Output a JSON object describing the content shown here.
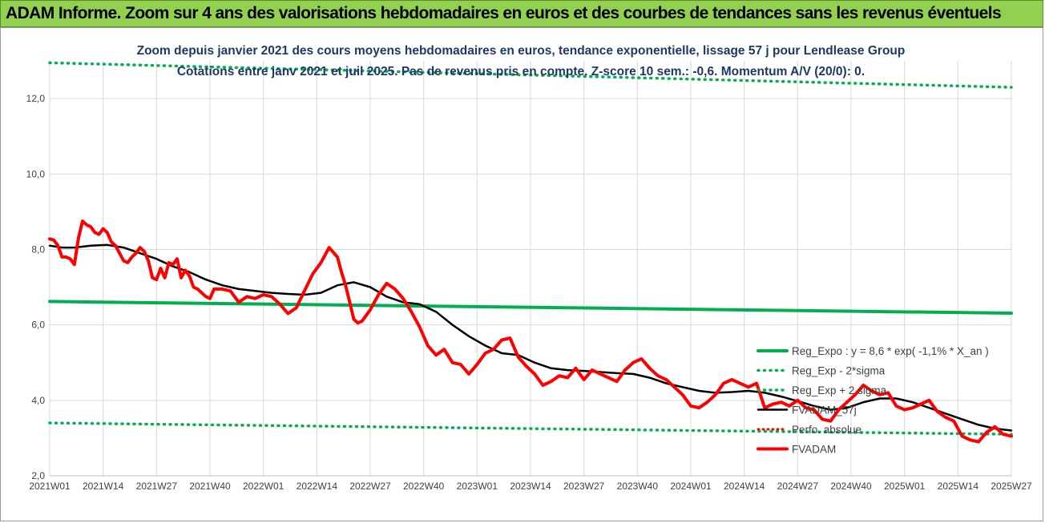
{
  "banner": {
    "title": "ADAM Informe. Zoom sur 4 ans des valorisations hebdomadaires en euros et des courbes de tendances sans les revenus éventuels"
  },
  "colors": {
    "banner": "#92d050",
    "trend": "#00b050",
    "price": "#ff0000",
    "smooth": "#000000",
    "grid": "#d9d9d9"
  },
  "chart_data": {
    "type": "line",
    "title": "Zoom depuis janvier 2021 des cours moyens hebdomadaires en euros, tendance exponentielle, lissage 57 j pour Lendlease Group",
    "subtitle": "Cotations entre janv 2021 et juil 2025. Pas de revenus pris en compte. Z-score 10 sem.: -0,6. Momentum A/V (20/0): 0.",
    "xlabel": "",
    "ylabel": "",
    "ylim": [
      2.0,
      13.0
    ],
    "y_ticks": [
      "2,0",
      "4,0",
      "6,0",
      "8,0",
      "10,0",
      "12,0"
    ],
    "x_ticks": [
      "2021W01",
      "2021W14",
      "2021W27",
      "2021W40",
      "2022W01",
      "2022W14",
      "2022W27",
      "2022W40",
      "2023W01",
      "2023W14",
      "2023W27",
      "2023W40",
      "2024W01",
      "2024W14",
      "2024W27",
      "2024W40",
      "2025W01",
      "2025W14",
      "2025W27"
    ],
    "grid": "vertical and horizontal",
    "legend_position": "bottom-right, inside plot",
    "series": [
      {
        "name": "Reg_Expo : y = 8,6 * exp( -1,1% * X_an )",
        "style": "solid",
        "x": [
          0,
          234
        ],
        "values": [
          6.62,
          6.31
        ]
      },
      {
        "name": "Reg_Exp - 2*sigma",
        "style": "dotted",
        "x": [
          0,
          234
        ],
        "values": [
          3.4,
          3.1
        ]
      },
      {
        "name": "Reg_Exp + 2 sigma",
        "style": "dotted",
        "x": [
          0,
          234
        ],
        "values": [
          12.95,
          12.3
        ]
      },
      {
        "name": "FVADAM_57j",
        "style": "solid",
        "x": [
          0,
          3,
          6,
          10,
          14,
          18,
          22,
          26,
          30,
          34,
          38,
          42,
          46,
          50,
          54,
          58,
          62,
          66,
          70,
          74,
          78,
          82,
          86,
          90,
          94,
          98,
          102,
          106,
          110,
          114,
          118,
          122,
          126,
          130,
          134,
          138,
          142,
          146,
          150,
          154,
          158,
          162,
          166,
          170,
          174,
          178,
          182,
          186,
          190,
          194,
          198,
          202,
          206,
          210,
          214,
          218,
          222,
          226,
          230,
          234
        ],
        "values": [
          8.1,
          8.05,
          8.05,
          8.1,
          8.12,
          8.05,
          7.9,
          7.75,
          7.55,
          7.4,
          7.2,
          7.05,
          6.95,
          6.9,
          6.85,
          6.82,
          6.8,
          6.85,
          7.05,
          7.13,
          7.0,
          6.75,
          6.6,
          6.55,
          6.35,
          6.0,
          5.7,
          5.45,
          5.25,
          5.2,
          5.0,
          4.85,
          4.8,
          4.78,
          4.75,
          4.72,
          4.7,
          4.6,
          4.45,
          4.35,
          4.25,
          4.2,
          4.22,
          4.25,
          4.2,
          4.1,
          3.98,
          3.85,
          3.75,
          3.8,
          3.95,
          4.05,
          4.05,
          3.95,
          3.8,
          3.65,
          3.5,
          3.35,
          3.25,
          3.2
        ]
      },
      {
        "name": "Perfo. absolue",
        "style": "dotted",
        "x": [],
        "values": []
      },
      {
        "name": "FVADAM",
        "style": "solid",
        "x": [
          0,
          1,
          2,
          3,
          4,
          5,
          6,
          7,
          8,
          9,
          10,
          11,
          12,
          13,
          14,
          15,
          16,
          17,
          18,
          19,
          20,
          21,
          22,
          23,
          24,
          25,
          26,
          27,
          28,
          29,
          30,
          31,
          32,
          33,
          34,
          35,
          36,
          37,
          38,
          39,
          40,
          42,
          44,
          46,
          48,
          50,
          52,
          54,
          56,
          58,
          60,
          62,
          64,
          66,
          68,
          70,
          71,
          72,
          73,
          74,
          75,
          76,
          77,
          78,
          79,
          80,
          81,
          82,
          84,
          86,
          88,
          90,
          92,
          94,
          96,
          98,
          100,
          102,
          104,
          106,
          108,
          110,
          112,
          114,
          116,
          118,
          120,
          122,
          124,
          126,
          128,
          130,
          132,
          134,
          136,
          138,
          140,
          142,
          144,
          146,
          148,
          150,
          152,
          154,
          156,
          158,
          160,
          162,
          164,
          166,
          168,
          170,
          172,
          174,
          176,
          178,
          180,
          182,
          184,
          186,
          188,
          190,
          192,
          194,
          196,
          198,
          200,
          202,
          204,
          206,
          208,
          210,
          212,
          214,
          216,
          218,
          220,
          222,
          224,
          226,
          228,
          230,
          232,
          234
        ],
        "values": [
          8.28,
          8.25,
          8.1,
          7.8,
          7.8,
          7.75,
          7.6,
          8.3,
          8.75,
          8.65,
          8.6,
          8.45,
          8.4,
          8.55,
          8.45,
          8.2,
          8.1,
          7.9,
          7.7,
          7.65,
          7.8,
          7.9,
          8.05,
          7.95,
          7.7,
          7.25,
          7.2,
          7.5,
          7.25,
          7.65,
          7.6,
          7.75,
          7.25,
          7.45,
          7.3,
          7.0,
          6.95,
          6.85,
          6.75,
          6.7,
          6.95,
          6.95,
          6.9,
          6.6,
          6.75,
          6.7,
          6.8,
          6.75,
          6.55,
          6.3,
          6.45,
          6.9,
          7.35,
          7.65,
          8.05,
          7.8,
          7.4,
          7.05,
          6.6,
          6.15,
          6.05,
          6.1,
          6.25,
          6.4,
          6.6,
          6.8,
          6.95,
          7.1,
          6.95,
          6.7,
          6.35,
          5.95,
          5.45,
          5.2,
          5.35,
          5.0,
          4.95,
          4.7,
          4.95,
          5.25,
          5.35,
          5.6,
          5.65,
          5.15,
          4.9,
          4.7,
          4.4,
          4.5,
          4.65,
          4.6,
          4.85,
          4.55,
          4.8,
          4.7,
          4.6,
          4.5,
          4.8,
          5.0,
          5.1,
          4.85,
          4.65,
          4.55,
          4.35,
          4.15,
          3.85,
          3.8,
          3.95,
          4.15,
          4.45,
          4.55,
          4.45,
          4.35,
          4.45,
          3.8,
          3.9,
          3.95,
          3.85,
          4.0,
          3.8,
          3.75,
          3.5,
          3.45,
          3.75,
          3.95,
          4.15,
          4.4,
          4.25,
          4.15,
          4.2,
          3.85,
          3.75,
          3.8,
          3.9,
          4.0,
          3.7,
          3.55,
          3.45,
          3.05,
          2.95,
          2.9,
          3.15,
          3.3,
          3.1,
          3.05
        ]
      }
    ]
  }
}
